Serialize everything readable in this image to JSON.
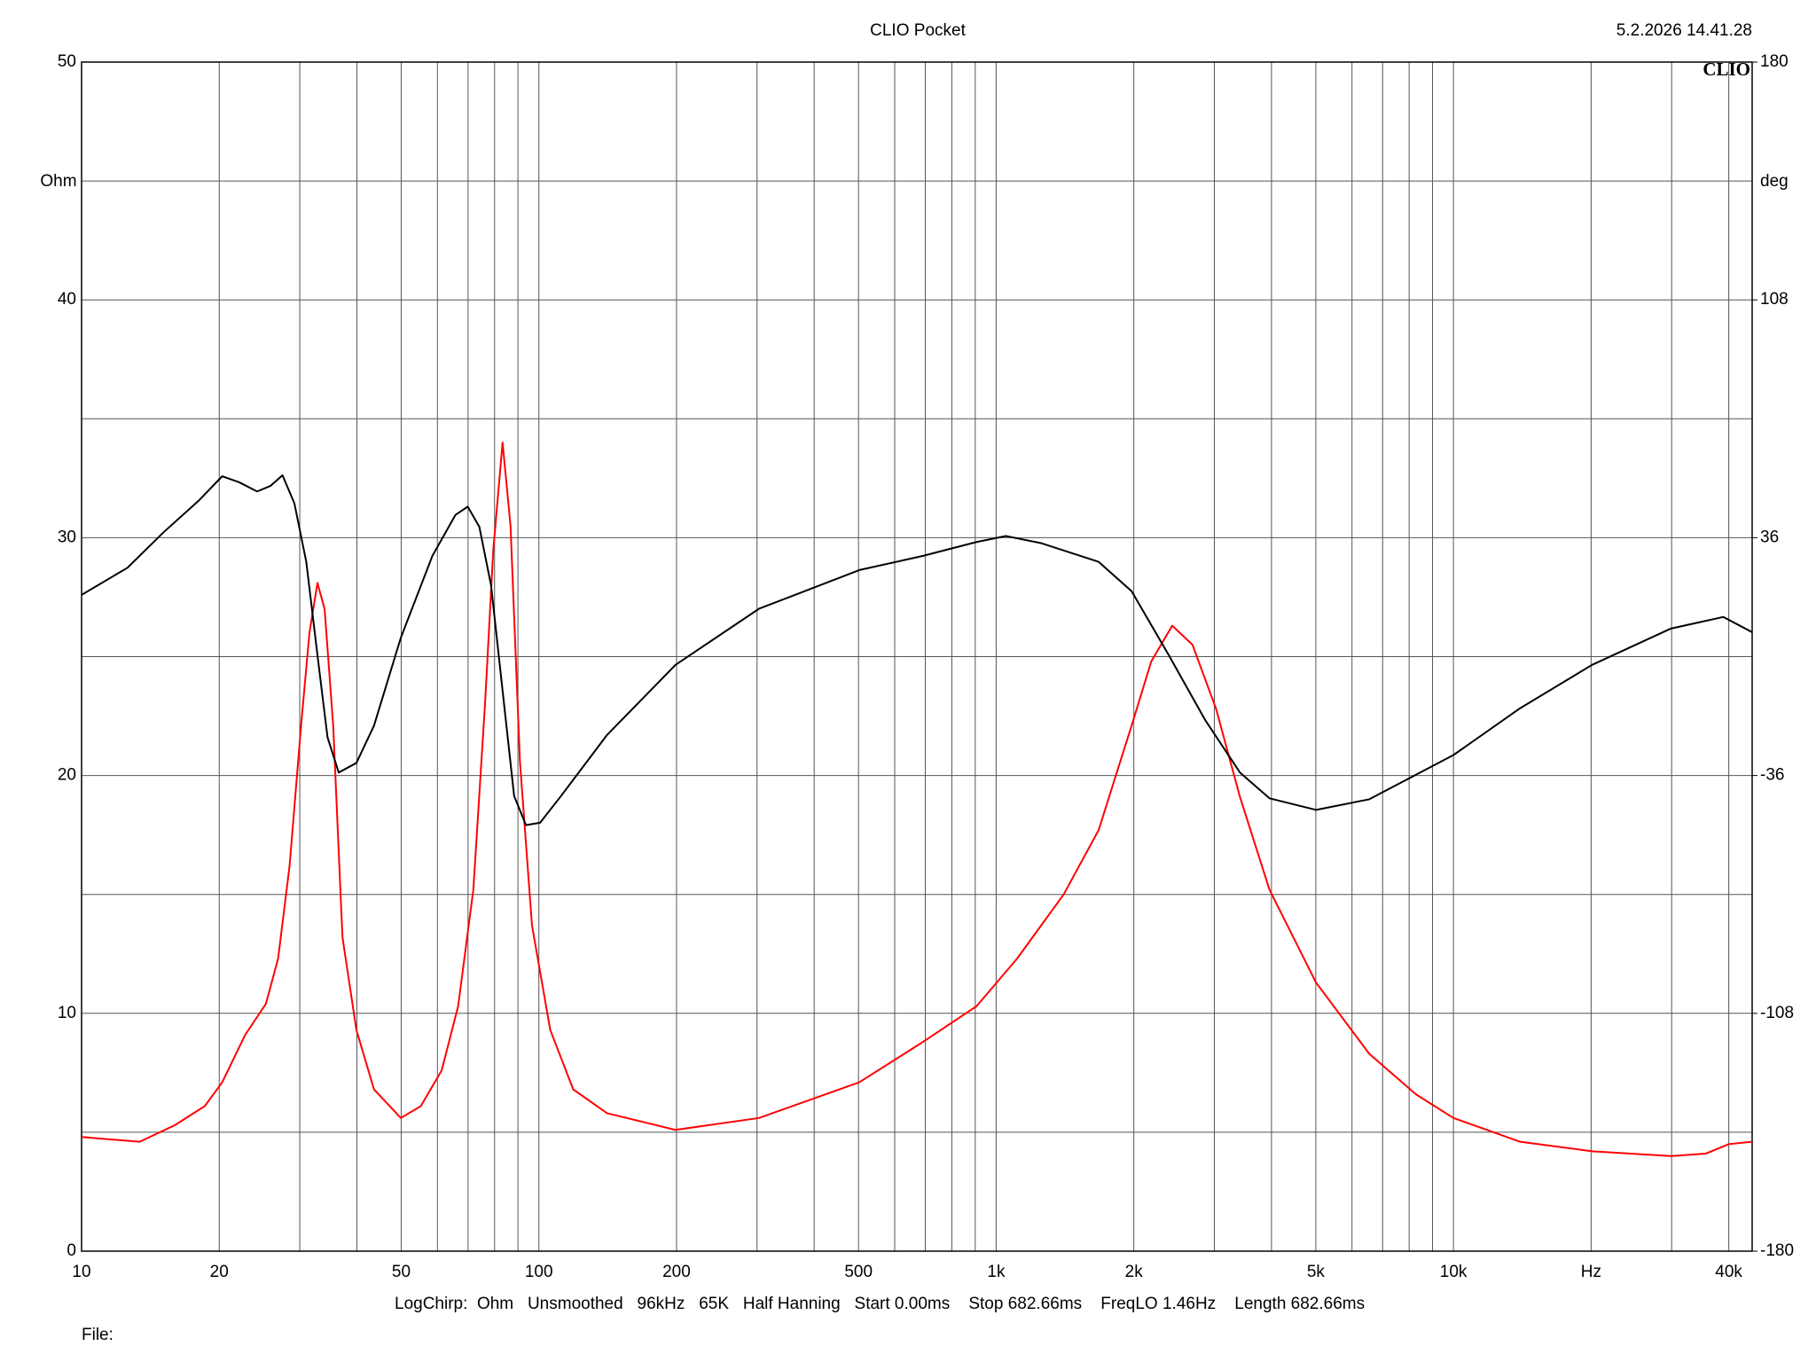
{
  "chart_data": {
    "type": "line",
    "title": "CLIO Pocket",
    "timestamp": "5.2.2026 14.41.28",
    "logo": "CLIO",
    "ylabel": "Ohm",
    "y2label": "deg",
    "footer": "LogChirp:  Ohm   Unsmoothed   96kHz   65K   Half Hanning   Start 0.00ms    Stop 682.66ms    FreqLO 1.46Hz    Length 682.66ms",
    "file_label": "File:",
    "log_x": true,
    "grid": true,
    "xlim": [
      10,
      45000
    ],
    "xticks": [
      10,
      20,
      50,
      100,
      200,
      500,
      {
        "value": 1000,
        "label": "1k"
      },
      {
        "value": 2000,
        "label": "2k"
      },
      {
        "value": 5000,
        "label": "5k"
      },
      {
        "value": 10000,
        "label": "10k"
      },
      {
        "value": 20000,
        "label": "Hz"
      },
      {
        "value": 40000,
        "label": "40k"
      }
    ],
    "xminor": [
      30,
      40,
      60,
      70,
      80,
      90,
      300,
      400,
      600,
      700,
      800,
      900,
      3000,
      4000,
      6000,
      7000,
      8000,
      9000,
      30000
    ],
    "ylim": [
      0,
      50
    ],
    "yticks": [
      0,
      10,
      20,
      30,
      40,
      50
    ],
    "yminor": [
      5,
      15,
      25,
      35,
      45
    ],
    "y2lim": [
      -180,
      180
    ],
    "y2ticks": [
      -180,
      -108,
      -36,
      36,
      108,
      180
    ],
    "series": [
      {
        "color": "#ff0000",
        "x": [
          10,
          13.4,
          16,
          18.6,
          20.3,
          22.8,
          25.3,
          26.9,
          28.5,
          30.2,
          31.5,
          32.8,
          34,
          35.5,
          37.2,
          39.9,
          43.6,
          49.9,
          55.2,
          61.3,
          66.6,
          71.9,
          76.3,
          79.5,
          83.3,
          86.7,
          90.9,
          96.6,
          105.9,
          118.9,
          141,
          199,
          303,
          502,
          692,
          906,
          1111,
          1405,
          1675,
          1978,
          2184,
          2427,
          2687,
          3027,
          3413,
          3960,
          5004,
          6543,
          8273,
          10000,
          14000,
          20100,
          29900,
          35600,
          40000,
          45000
        ],
        "values": [
          4.8,
          4.6,
          5.3,
          6.1,
          7.1,
          9.1,
          10.4,
          12.3,
          16.2,
          22.1,
          26.0,
          28.1,
          27.0,
          22.1,
          13.2,
          9.3,
          6.8,
          5.6,
          6.1,
          7.6,
          10.3,
          15.2,
          23.1,
          29.5,
          34.0,
          30.5,
          20.6,
          13.7,
          9.3,
          6.8,
          5.8,
          5.1,
          5.6,
          7.1,
          8.8,
          10.3,
          12.3,
          15.0,
          17.7,
          22.1,
          24.8,
          26.3,
          25.5,
          22.8,
          19.1,
          15.2,
          11.3,
          8.3,
          6.6,
          5.6,
          4.6,
          4.2,
          4.0,
          4.1,
          4.5,
          4.6
        ]
      },
      {
        "color": "#000000",
        "axis": "y2",
        "x": [
          10,
          12.6,
          15.1,
          18,
          20.3,
          22.1,
          24.2,
          25.9,
          27.5,
          29.2,
          31,
          32.8,
          34.5,
          36.5,
          39.9,
          43.6,
          49.9,
          58.5,
          65.7,
          69.9,
          74.1,
          78.6,
          83.3,
          88.3,
          93.7,
          100.6,
          111.8,
          141,
          199,
          303,
          502,
          692,
          906,
          1050,
          1250,
          1675,
          1978,
          2386,
          2862,
          3413,
          3960,
          5004,
          6543,
          10000,
          14000,
          20100,
          29900,
          38900,
          45000
        ],
        "values": [
          18.7,
          26.9,
          37.6,
          47.1,
          54.6,
          52.8,
          50.0,
          51.7,
          54.9,
          46.4,
          28.7,
          0.4,
          -24.4,
          -35.1,
          -32.2,
          -20.9,
          5.7,
          30.5,
          42.9,
          45.4,
          39.3,
          21.6,
          -10.3,
          -42.2,
          -51.0,
          -50.3,
          -42.2,
          -23.7,
          -2.5,
          14.5,
          26.2,
          30.5,
          34.7,
          36.5,
          34.4,
          28.7,
          19.8,
          0.4,
          -19.1,
          -35.1,
          -42.9,
          -46.4,
          -43.2,
          -29.8,
          -15.6,
          -2.5,
          8.5,
          12.0,
          7.4
        ]
      }
    ]
  }
}
